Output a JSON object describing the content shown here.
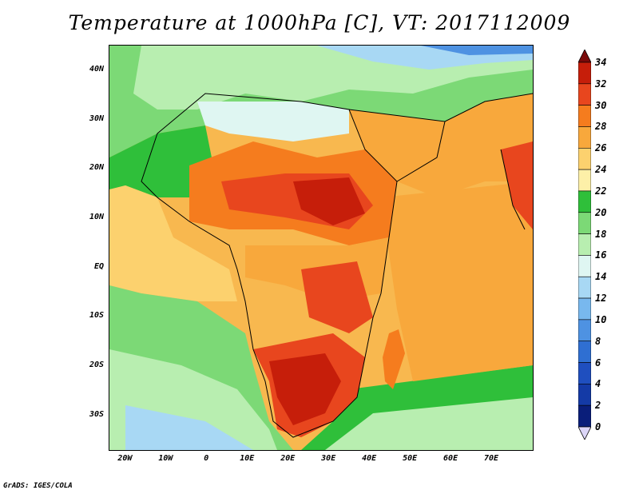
{
  "title": "Temperature at 1000hPa [C], VT: 2017112009",
  "credit": "GrADS: IGES/COLA",
  "map": {
    "lat_labels": [
      "40N",
      "30N",
      "20N",
      "10N",
      "EQ",
      "10S",
      "20S",
      "30S"
    ],
    "lat_values": [
      40,
      30,
      20,
      10,
      0,
      -10,
      -20,
      -30
    ],
    "lon_labels": [
      "20W",
      "10W",
      "0",
      "10E",
      "20E",
      "30E",
      "40E",
      "50E",
      "60E",
      "70E"
    ],
    "lon_values": [
      -20,
      -10,
      0,
      10,
      20,
      30,
      40,
      50,
      60,
      70
    ]
  },
  "colorbar": {
    "labels": [
      "34",
      "32",
      "30",
      "28",
      "26",
      "24",
      "22",
      "20",
      "18",
      "16",
      "14",
      "12",
      "10",
      "8",
      "6",
      "4",
      "2",
      "0"
    ],
    "colors": [
      "#7a0a0a",
      "#c61e0a",
      "#e8461e",
      "#f57c1e",
      "#f8a83c",
      "#fcd16e",
      "#fdf0a8",
      "#2fbf3a",
      "#7cd976",
      "#b8eeb0",
      "#dff6f2",
      "#a8d8f4",
      "#78b8ee",
      "#4e92e2",
      "#2f6fd2",
      "#1f4fbf",
      "#143aa6",
      "#0a1e7a",
      "#0a0f5a",
      "#dcd6f8"
    ]
  }
}
